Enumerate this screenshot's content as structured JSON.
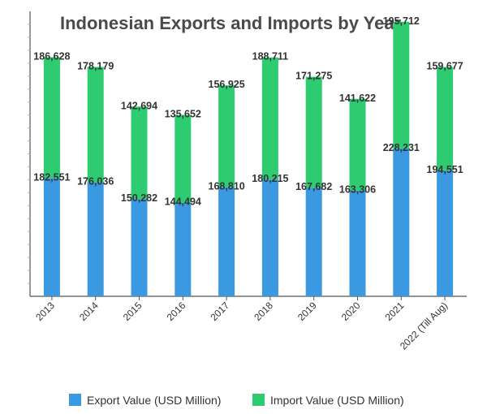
{
  "chart_data": {
    "type": "stacked-bar",
    "title": "Indonesian Exports and Imports by Year",
    "xlabel": "",
    "ylabel": "",
    "categories": [
      "2013",
      "2014",
      "2015",
      "2016",
      "2017",
      "2018",
      "2019",
      "2020",
      "2021",
      "2022 (Till Aug)"
    ],
    "series": [
      {
        "name": "Export Value (USD Million)",
        "color": "#3a99e0",
        "values": [
          182551,
          176036,
          150282,
          144494,
          168810,
          180215,
          167682,
          163306,
          228231,
          194551
        ],
        "labels": [
          "182,551",
          "176,036",
          "150,282",
          "144,494",
          "168,810",
          "180,215",
          "167,682",
          "163,306",
          "228,231",
          "194,551"
        ]
      },
      {
        "name": "Import Value (USD Million)",
        "color": "#2ecc71",
        "values": [
          186628,
          178179,
          142694,
          135652,
          156925,
          188711,
          171275,
          141622,
          195712,
          159677
        ],
        "labels": [
          "186,628",
          "178,179",
          "142,694",
          "135,652",
          "156,925",
          "188,711",
          "171,275",
          "141,622",
          "195,712",
          "159,677"
        ]
      }
    ],
    "ylim": [
      0,
      440000
    ],
    "grid": false,
    "legend_position": "bottom"
  }
}
